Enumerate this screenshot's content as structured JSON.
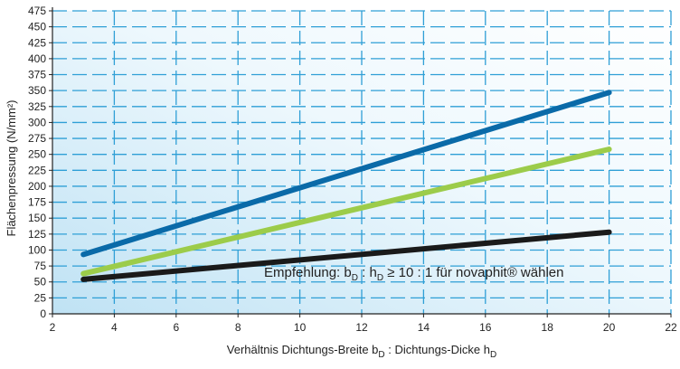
{
  "chart_data": {
    "type": "line",
    "title": "",
    "xlabel": "Verhältnis Dichtungs-Breite b_D : Dichtungs-Dicke h_D",
    "xlabel_parts": {
      "main": "Verhältnis Dichtungs-Breite b",
      "sub1": "D",
      "middle": " : Dichtungs-Dicke h",
      "sub2": "D"
    },
    "ylabel": "Flächenpressung (N/mm²)",
    "xlim": [
      2,
      22
    ],
    "ylim": [
      0,
      475
    ],
    "x_ticks": [
      2,
      4,
      6,
      8,
      10,
      12,
      14,
      16,
      18,
      20,
      22
    ],
    "y_ticks": [
      0,
      25,
      50,
      75,
      100,
      125,
      150,
      175,
      200,
      225,
      250,
      275,
      300,
      325,
      350,
      375,
      400,
      425,
      450,
      475
    ],
    "grid": true,
    "series": [
      {
        "color": "#0a6aa8",
        "x": [
          3,
          20
        ],
        "y": [
          93,
          347
        ]
      },
      {
        "color": "#9ccc4a",
        "x": [
          3,
          20
        ],
        "y": [
          63,
          258
        ]
      },
      {
        "color": "#1a1a1a",
        "x": [
          3,
          20
        ],
        "y": [
          54,
          128
        ]
      }
    ],
    "annotation": {
      "prefix": "Empfehlung: b",
      "sub1": "D",
      "middle": " : h",
      "sub2": "D",
      "suffix": " ≥ 10 : 1 für novaphit® wählen"
    }
  }
}
